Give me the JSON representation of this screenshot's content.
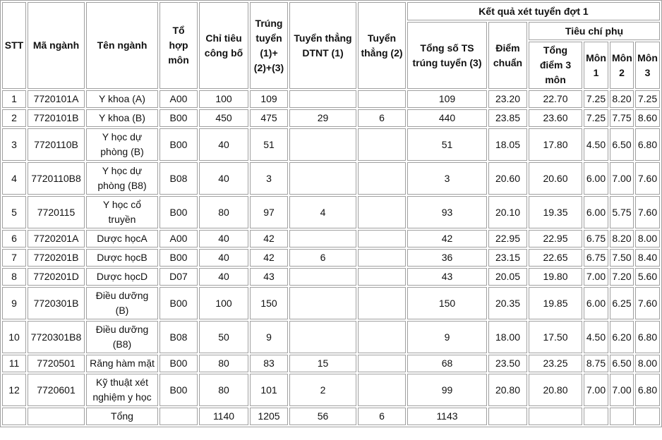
{
  "table": {
    "header": {
      "stt": "STT",
      "ma_nganh": "Mã ngành",
      "ten_nganh": "Tên ngành",
      "to_hop": "Tổ hợp môn",
      "chi_tieu": "Chỉ tiêu công bố",
      "trung_tuyen": "Trúng tuyển (1)+(2)+(3)",
      "dtnt": "Tuyển thẳng DTNT (1)",
      "tuyen_thang": "Tuyển thẳng (2)",
      "ket_qua": "Kết quả xét tuyển đợt 1",
      "tong_so": "Tổng số TS trúng tuyển (3)",
      "diem_chuan": "Điểm chuẩn",
      "tieu_chi": "Tiêu chí phụ",
      "tong_diem": "Tổng điểm 3 môn",
      "mon1": "Môn 1",
      "mon2": "Môn 2",
      "mon3": "Môn 3"
    },
    "rows": [
      [
        "1",
        "7720101A",
        "Y khoa (A)",
        "A00",
        "100",
        "109",
        null,
        null,
        "109",
        "23.20",
        "22.70",
        "7.25",
        "8.20",
        "7.25"
      ],
      [
        "2",
        "7720101B",
        "Y khoa (B)",
        "B00",
        "450",
        "475",
        "29",
        "6",
        "440",
        "23.85",
        "23.60",
        "7.25",
        "7.75",
        "8.60"
      ],
      [
        "3",
        "7720110B",
        "Y học dự phòng (B)",
        "B00",
        "40",
        "51",
        null,
        null,
        "51",
        "18.05",
        "17.80",
        "4.50",
        "6.50",
        "6.80"
      ],
      [
        "4",
        "7720110B8",
        "Y học dự phòng (B8)",
        "B08",
        "40",
        "3",
        null,
        null,
        "3",
        "20.60",
        "20.60",
        "6.00",
        "7.00",
        "7.60"
      ],
      [
        "5",
        "7720115",
        "Y học cổ truyền",
        "B00",
        "80",
        "97",
        "4",
        null,
        "93",
        "20.10",
        "19.35",
        "6.00",
        "5.75",
        "7.60"
      ],
      [
        "6",
        "7720201A",
        "Dược họcA",
        "A00",
        "40",
        "42",
        null,
        null,
        "42",
        "22.95",
        "22.95",
        "6.75",
        "8.20",
        "8.00"
      ],
      [
        "7",
        "7720201B",
        "Dược họcB",
        "B00",
        "40",
        "42",
        "6",
        null,
        "36",
        "23.15",
        "22.65",
        "6.75",
        "7.50",
        "8.40"
      ],
      [
        "8",
        "7720201D",
        "Dược họcD",
        "D07",
        "40",
        "43",
        null,
        null,
        "43",
        "20.05",
        "19.80",
        "7.00",
        "7.20",
        "5.60"
      ],
      [
        "9",
        "7720301B",
        "Điều dưỡng (B)",
        "B00",
        "100",
        "150",
        null,
        null,
        "150",
        "20.35",
        "19.85",
        "6.00",
        "6.25",
        "7.60"
      ],
      [
        "10",
        "7720301B8",
        "Điều dưỡng (B8)",
        "B08",
        "50",
        "9",
        null,
        null,
        "9",
        "18.00",
        "17.50",
        "4.50",
        "6.20",
        "6.80"
      ],
      [
        "11",
        "7720501",
        "Răng hàm mặt",
        "B00",
        "80",
        "83",
        "15",
        null,
        "68",
        "23.50",
        "23.25",
        "8.75",
        "6.50",
        "8.00"
      ],
      [
        "12",
        "7720601",
        "Kỹ thuật xét nghiệm y học",
        "B00",
        "80",
        "101",
        "2",
        null,
        "99",
        "20.80",
        "20.80",
        "7.00",
        "7.00",
        "6.80"
      ],
      [
        null,
        null,
        "Tổng",
        null,
        "1140",
        "1205",
        "56",
        "6",
        "1143",
        null,
        null,
        null,
        null,
        null
      ]
    ]
  }
}
